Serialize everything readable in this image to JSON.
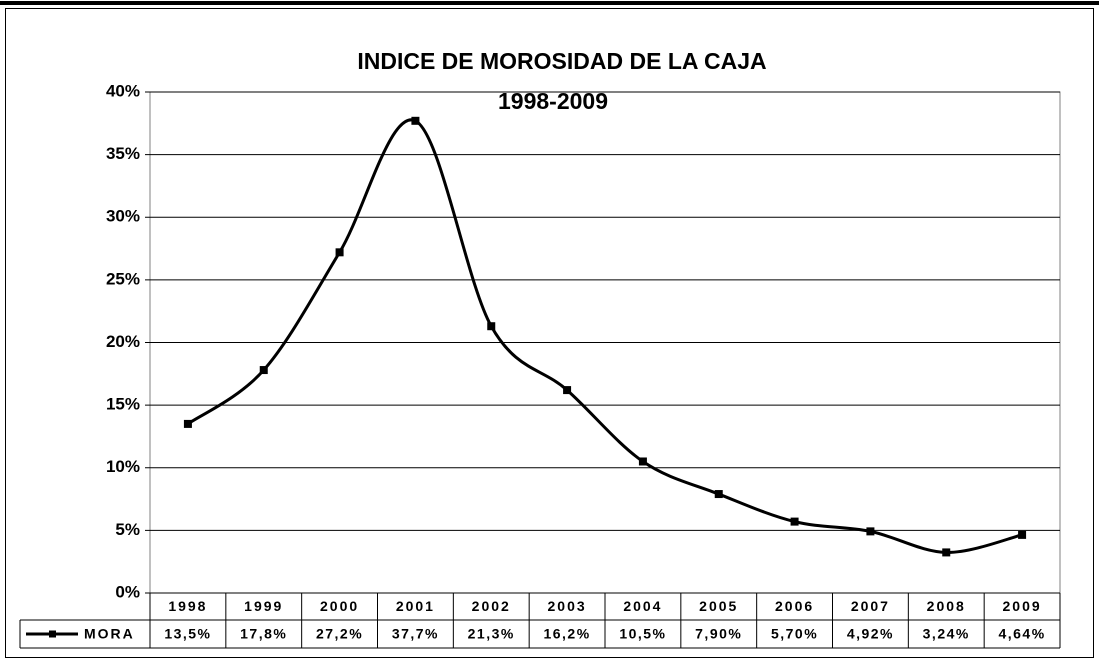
{
  "chart_data": {
    "type": "line",
    "title": "INDICE DE MOROSIDAD DE LA CAJA",
    "subtitle": "1998-2009",
    "categories": [
      "1998",
      "1999",
      "2000",
      "2001",
      "2002",
      "2003",
      "2004",
      "2005",
      "2006",
      "2007",
      "2008",
      "2009"
    ],
    "series": [
      {
        "name": "MORA",
        "color": "#000000",
        "values": [
          13.5,
          17.8,
          27.2,
          37.7,
          21.3,
          16.2,
          10.5,
          7.9,
          5.7,
          4.92,
          3.24,
          4.64
        ],
        "value_labels": [
          "13,5%",
          "17,8%",
          "27,2%",
          "37,7%",
          "21,3%",
          "16,2%",
          "10,5%",
          "7,90%",
          "5,70%",
          "4,92%",
          "3,24%",
          "4,64%"
        ]
      }
    ],
    "ylim": [
      0,
      40
    ],
    "yticks": [
      {
        "value": 0,
        "label": "0%"
      },
      {
        "value": 5,
        "label": "5%"
      },
      {
        "value": 10,
        "label": "10%"
      },
      {
        "value": 15,
        "label": "15%"
      },
      {
        "value": 20,
        "label": "20%"
      },
      {
        "value": 25,
        "label": "25%"
      },
      {
        "value": 30,
        "label": "30%"
      },
      {
        "value": 35,
        "label": "35%"
      },
      {
        "value": 40,
        "label": "40%"
      }
    ],
    "grid": true,
    "smooth": true
  }
}
